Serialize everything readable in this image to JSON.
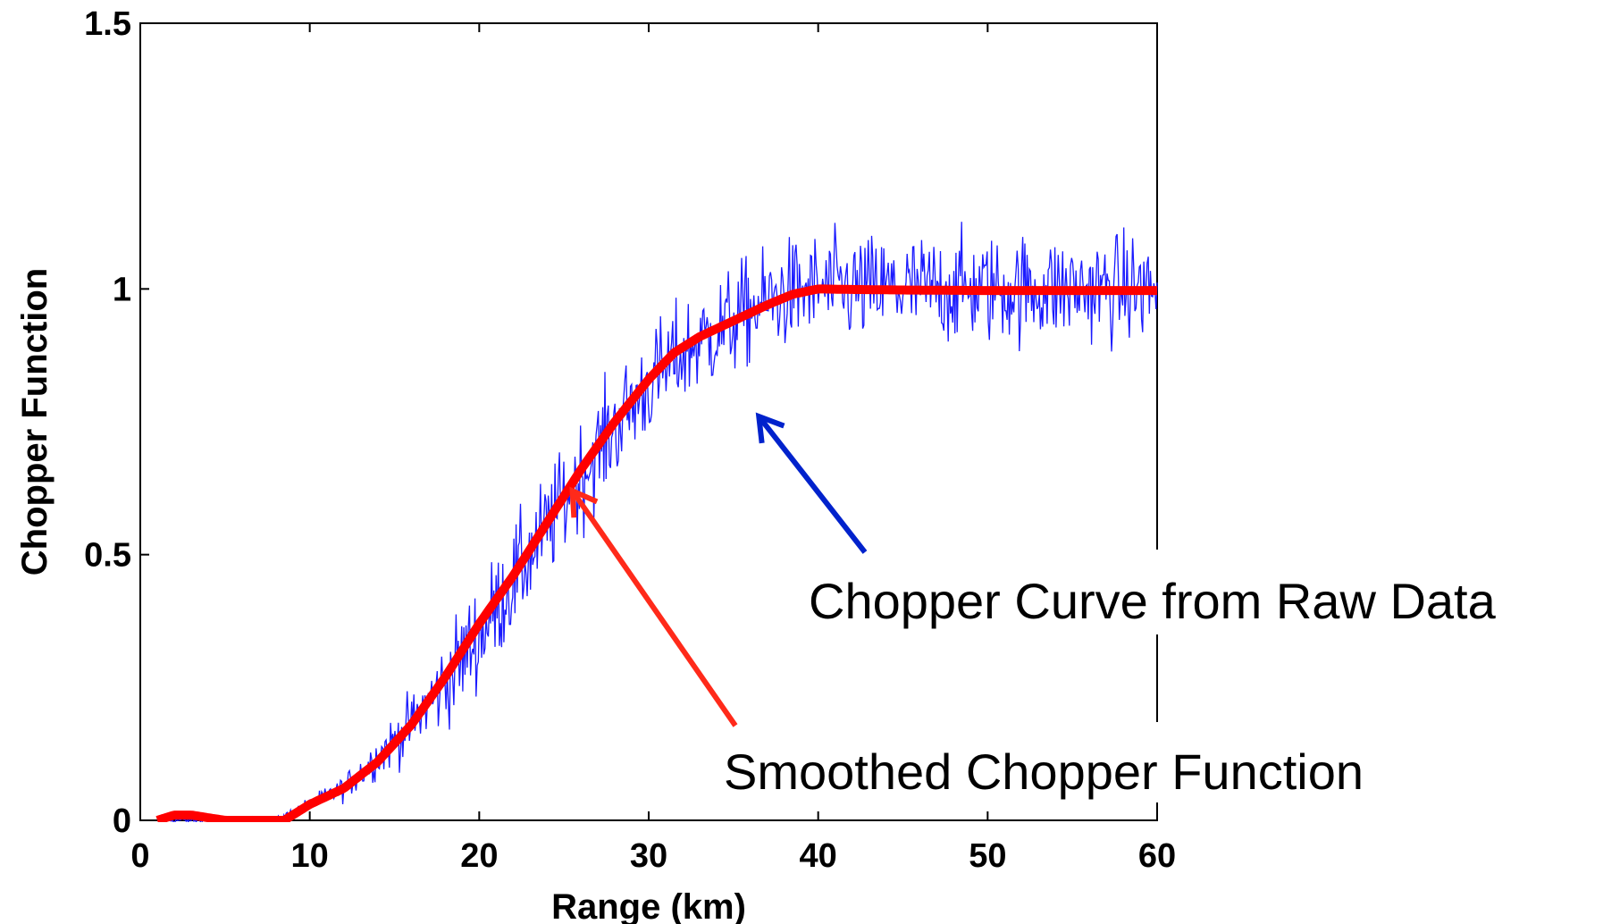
{
  "chart_data": {
    "type": "line",
    "title": "",
    "xlabel": "Range (km)",
    "ylabel": "Chopper Function",
    "xlim": [
      0,
      60
    ],
    "ylim": [
      0,
      1.5
    ],
    "x_ticks": [
      "0",
      "10",
      "20",
      "30",
      "40",
      "50",
      "60"
    ],
    "y_ticks": [
      "0",
      "0.5",
      "1",
      "1.5"
    ],
    "grid": false,
    "legend": "none",
    "series": [
      {
        "role": "raw",
        "color": "#1a1aff",
        "x_range": [
          1,
          60
        ],
        "x": [
          1,
          5,
          8,
          10,
          12,
          14,
          16,
          18,
          20,
          22,
          24,
          26,
          28,
          30,
          32,
          34,
          36,
          38,
          40,
          45,
          50,
          55,
          60
        ],
        "y": [
          0.0,
          0.0,
          0.0,
          0.03,
          0.06,
          0.12,
          0.18,
          0.26,
          0.35,
          0.45,
          0.55,
          0.65,
          0.74,
          0.82,
          0.88,
          0.92,
          0.96,
          0.99,
          1.0,
          1.0,
          1.0,
          1.0,
          1.0
        ],
        "noise_amplitude": 0.1
      },
      {
        "role": "smoothed",
        "color": "#ff0000",
        "x": [
          1,
          2,
          3,
          5,
          7,
          8.5,
          10,
          12,
          14,
          16,
          18,
          20,
          22,
          24,
          26,
          28,
          30,
          31.5,
          33,
          35,
          37,
          38.5,
          40,
          42,
          45,
          50,
          55,
          60
        ],
        "y": [
          0.0,
          0.01,
          0.01,
          0.0,
          0.0,
          0.0,
          0.03,
          0.06,
          0.11,
          0.18,
          0.27,
          0.37,
          0.46,
          0.56,
          0.66,
          0.75,
          0.83,
          0.88,
          0.91,
          0.94,
          0.97,
          0.99,
          1.0,
          0.999,
          0.998,
          0.997,
          0.997,
          0.997
        ]
      }
    ],
    "annotations": [
      {
        "text": "Chopper Curve from Raw Data",
        "color": "#0022cc",
        "arrow_to": [
          36.5,
          0.76
        ]
      },
      {
        "text": "Smoothed Chopper Function",
        "color": "#ff2a1a",
        "arrow_to": [
          25.5,
          0.62
        ]
      }
    ]
  }
}
